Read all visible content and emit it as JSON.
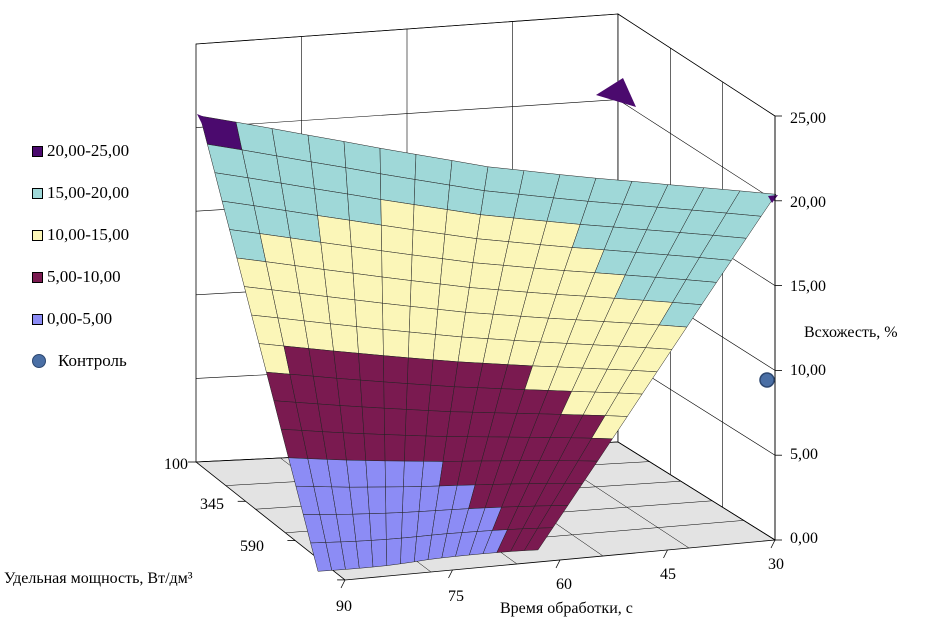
{
  "chart_data": {
    "type": "surface-3d",
    "zlabel": "Всхожесть, %",
    "xlabel": "Время обработки, с",
    "ylabel": "Удельная мощность, Вт/дм³",
    "z_ticks": [
      "0,00",
      "5,00",
      "10,00",
      "15,00",
      "20,00",
      "25,00"
    ],
    "zlim": [
      0,
      25
    ],
    "x_ticks": [
      "90",
      "75",
      "60",
      "45",
      "30"
    ],
    "y_ticks": [
      "100",
      "345",
      "590"
    ],
    "legend": [
      {
        "label": "20,00-25,00",
        "color": "#4b0a6e"
      },
      {
        "label": "15,00-20,00",
        "color": "#9fd8d8"
      },
      {
        "label": "10,00-15,00",
        "color": "#fbf6b8"
      },
      {
        "label": "5,00-10,00",
        "color": "#7a1a50"
      },
      {
        "label": "0,00-5,00",
        "color": "#8c8cf5"
      }
    ],
    "control_label": "Контроль",
    "control_value": 9.2,
    "surface_rows": [
      [
        21.5,
        18.8,
        17.0,
        16.2,
        16.5,
        18.0,
        20.5
      ],
      [
        16.5,
        14.8,
        13.8,
        13.5,
        14.0,
        15.5,
        17.5
      ],
      [
        11.0,
        10.0,
        9.6,
        9.6,
        10.2,
        11.5,
        13.5
      ],
      [
        5.5,
        5.0,
        5.2,
        5.5,
        6.5,
        7.8,
        9.5
      ],
      [
        0.5,
        0.5,
        1.0,
        2.0,
        3.2,
        4.5,
        6.0
      ]
    ],
    "grid": true
  }
}
